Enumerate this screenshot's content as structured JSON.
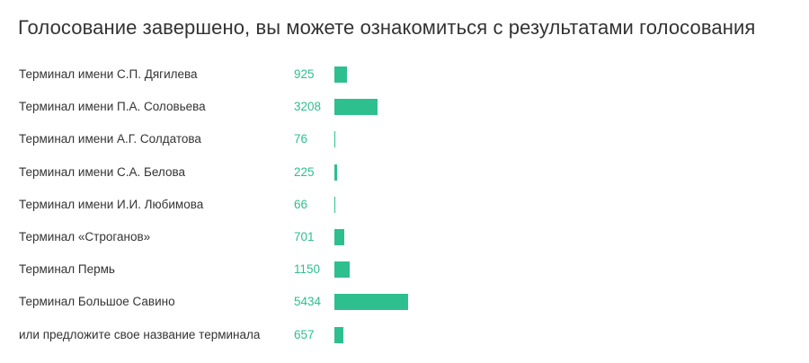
{
  "title": "Голосование завершено, вы можете ознакомиться с результатами голосования",
  "colors": {
    "accent": "#2ebf8f",
    "text": "#333333"
  },
  "chart_data": {
    "type": "bar",
    "orientation": "horizontal",
    "categories": [
      "Терминал имени С.П. Дягилева",
      "Терминал имени П.А. Соловьева",
      "Терминал имени А.Г. Солдатова",
      "Терминал имени С.А. Белова",
      "Терминал имени И.И. Любимова",
      "Терминал «Строганов»",
      "Терминал Пермь",
      "Терминал Большое Савино",
      "или предложите свое название терминала"
    ],
    "values": [
      925,
      3208,
      76,
      225,
      66,
      701,
      1150,
      5434,
      657
    ],
    "display_values": [
      "925",
      "3208",
      "76",
      "225",
      "66",
      "701",
      "1150",
      "5434",
      "657"
    ],
    "xlim": [
      0,
      5434
    ],
    "grid": false
  }
}
